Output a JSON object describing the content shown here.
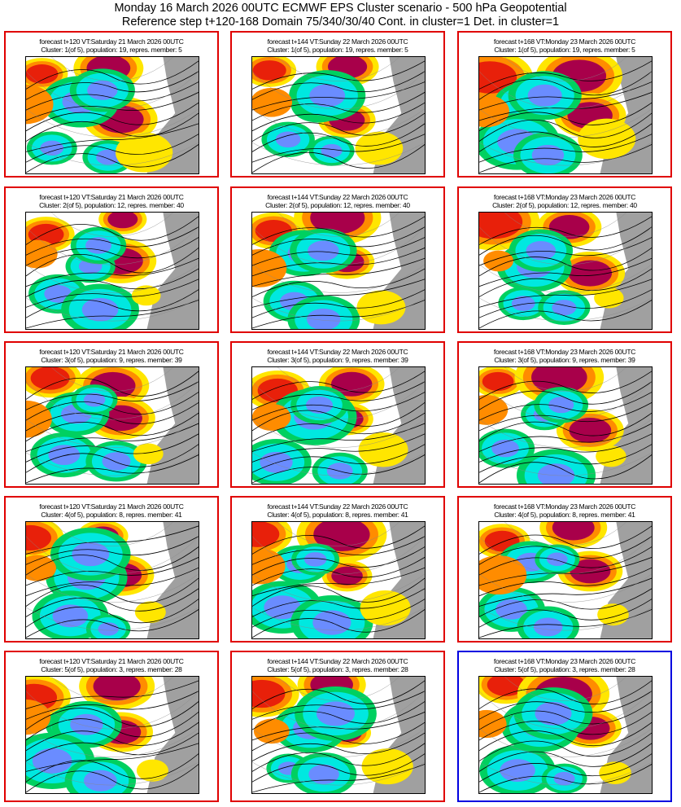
{
  "title_line1": "Monday 16 March 2026 00UTC ECMWF EPS Cluster scenario - 500 hPa Geopotential",
  "title_line2": "Reference step t+120-168 Domain 75/340/30/40 Cont. in cluster=1 Det. in cluster=1",
  "colors": {
    "cluster_border": "#e00000",
    "deterministic_border": "#0000e0"
  },
  "steps": [
    {
      "label": "forecast t+120 VT:Saturday 21 March 2026 00UTC"
    },
    {
      "label": "forecast t+144 VT:Sunday 22 March 2026 00UTC"
    },
    {
      "label": "forecast t+168 VT:Monday 23 March 2026 00UTC"
    }
  ],
  "clusters": [
    {
      "label": "Cluster: 1(of 5), population: 19, repres. member: 5"
    },
    {
      "label": "Cluster: 2(of 5), population: 12, repres. member: 40"
    },
    {
      "label": "Cluster: 3(of 5), population: 9, repres. member: 39"
    },
    {
      "label": "Cluster: 4(of 5), population: 8, repres. member: 41"
    },
    {
      "label": "Cluster: 5(of 5), population: 3, repres. member: 28"
    }
  ],
  "deterministic_panel": {
    "cluster": 5,
    "step": 3
  }
}
